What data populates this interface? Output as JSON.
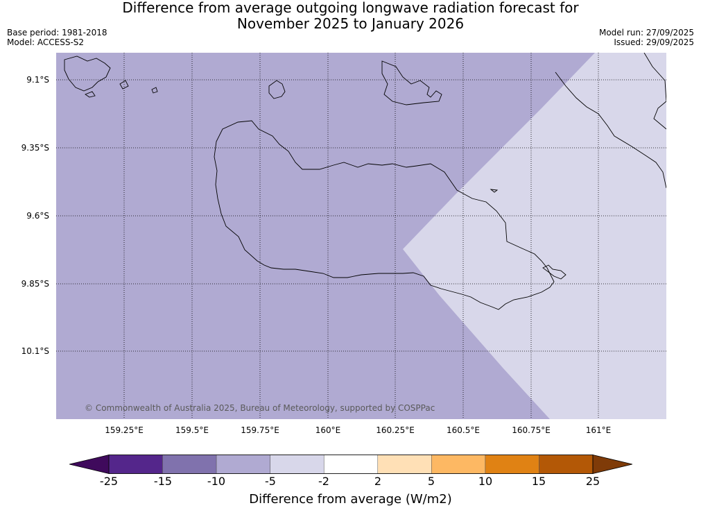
{
  "header": {
    "title_line1": "Difference from average outgoing longwave radiation forecast for",
    "title_line2": "November 2025 to January 2026",
    "base_period": "Base period: 1981-2018",
    "model": "Model: ACCESS-S2",
    "model_run": "Model run: 27/09/2025",
    "issued": "Issued: 29/09/2025"
  },
  "map": {
    "lat_labels": [
      "9.1°S",
      "9.35°S",
      "9.6°S",
      "9.85°S",
      "10.1°S"
    ],
    "lon_labels": [
      "159.25°E",
      "159.5°E",
      "159.75°E",
      "160°E",
      "160.25°E",
      "160.5°E",
      "160.75°E",
      "161°E"
    ],
    "copyright": "© Commonwealth of Australia 2025, Bureau of Meteorology, supported by COSPPac",
    "colors": {
      "land_minus10_to_minus5": "#b0aad2",
      "minus5_to_minus2": "#d8d7ea"
    }
  },
  "colorbar": {
    "title": "Difference from average (W/m2)",
    "ticks": [
      "-25",
      "-15",
      "-10",
      "-5",
      "-2",
      "2",
      "5",
      "10",
      "15",
      "25"
    ],
    "colors": [
      "#3f0a5c",
      "#54268b",
      "#8072ad",
      "#b0aad2",
      "#d8d7ea",
      "#ffffff",
      "#ffe0b6",
      "#fdb863",
      "#e08214",
      "#b35806",
      "#7f3b08"
    ]
  }
}
